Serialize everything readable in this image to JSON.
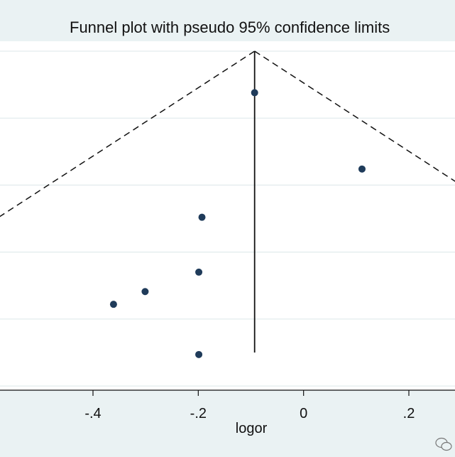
{
  "chart_data": {
    "type": "scatter",
    "title": "Funnel plot with pseudo 95% confidence limits",
    "xlabel": "logor",
    "ylabel": "",
    "xlim": [
      -0.6,
      0.29
    ],
    "ylim": [
      0.5,
      0.0
    ],
    "x_ticks": [
      {
        "value": -0.4,
        "label": "-.4"
      },
      {
        "value": -0.2,
        "label": "-.2"
      },
      {
        "value": 0,
        "label": "0"
      },
      {
        "value": 0.2,
        "label": ".2"
      }
    ],
    "y_gridlines": [
      0.0,
      0.1,
      0.2,
      0.3,
      0.4,
      0.5
    ],
    "grid": true,
    "pooled_estimate": -0.093,
    "funnel": {
      "apex_se": 0.0,
      "lower_se": 0.45,
      "slope": 1.96
    },
    "series": [
      {
        "points": [
          {
            "x": -0.093,
            "y": 0.062
          },
          {
            "x": 0.111,
            "y": 0.176
          },
          {
            "x": -0.193,
            "y": 0.248
          },
          {
            "x": -0.199,
            "y": 0.33
          },
          {
            "x": -0.301,
            "y": 0.359
          },
          {
            "x": -0.361,
            "y": 0.378
          },
          {
            "x": -0.199,
            "y": 0.453
          }
        ],
        "color": "#1f3b5a"
      }
    ],
    "colors": {
      "background": "#eaf2f3",
      "plot_area": "#ffffff",
      "grid": "#e3ecee",
      "marker": "#1f3b5a"
    }
  }
}
